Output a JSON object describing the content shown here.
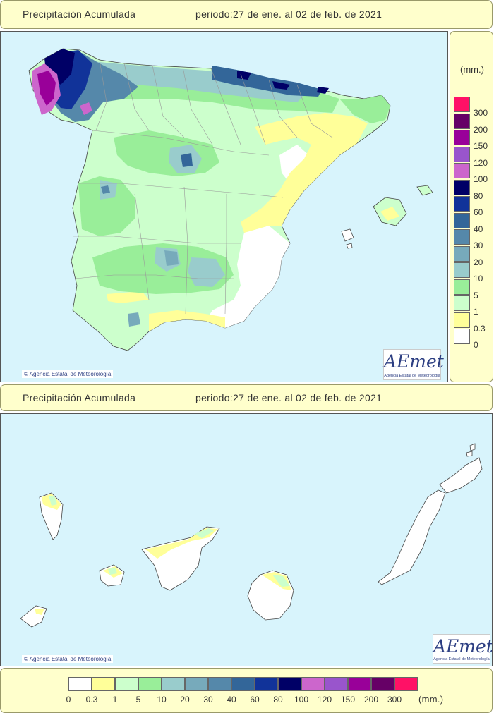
{
  "top_header": {
    "title": "Precipitación Acumulada",
    "period": "periodo:27 de ene. al 02 de feb. de 2021"
  },
  "bottom_header": {
    "title": "Precipitación Acumulada",
    "period": "periodo:27 de ene. al 02 de feb. de 2021"
  },
  "credit": "Agencia Estatal de Meteorología",
  "logo": {
    "text": "AEmet",
    "subtitle": "Agencia Estatal de Meteorología"
  },
  "legend": {
    "unit": "(mm.)",
    "classes": [
      {
        "label": "0",
        "color": "#ffffff"
      },
      {
        "label": "0.3",
        "color": "#ffff99"
      },
      {
        "label": "1",
        "color": "#ccffcc"
      },
      {
        "label": "5",
        "color": "#99ee99"
      },
      {
        "label": "10",
        "color": "#99cccc"
      },
      {
        "label": "20",
        "color": "#77aabb"
      },
      {
        "label": "30",
        "color": "#5588aa"
      },
      {
        "label": "40",
        "color": "#336699"
      },
      {
        "label": "60",
        "color": "#113399"
      },
      {
        "label": "80",
        "color": "#000066"
      },
      {
        "label": "100",
        "color": "#cc66cc"
      },
      {
        "label": "120",
        "color": "#9955cc"
      },
      {
        "label": "150",
        "color": "#990099"
      },
      {
        "label": "200",
        "color": "#660066"
      },
      {
        "label": "300",
        "color": "#ff1166"
      }
    ]
  }
}
